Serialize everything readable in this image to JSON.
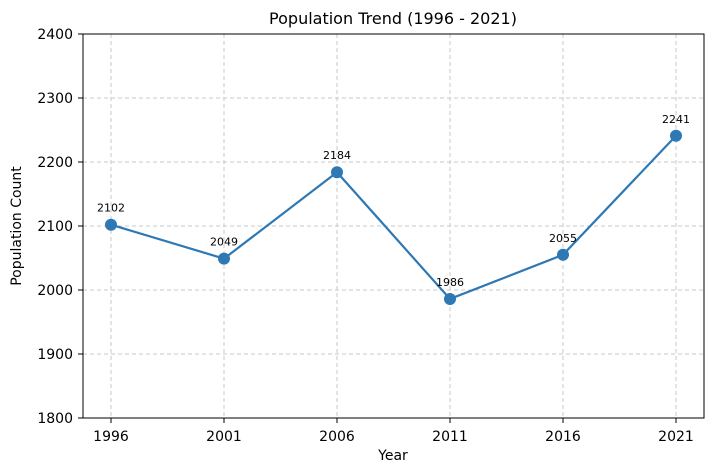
{
  "chart_data": {
    "type": "line",
    "title": "Population Trend (1996 - 2021)",
    "xlabel": "Year",
    "ylabel": "Population Count",
    "categories": [
      "1996",
      "2001",
      "2006",
      "2011",
      "2016",
      "2021"
    ],
    "series": [
      {
        "values": [
          2102,
          2049,
          2184,
          1986,
          2055,
          2241
        ],
        "color": "#2e78b4"
      }
    ],
    "data_labels": [
      "2102",
      "2049",
      "2184",
      "1986",
      "2055",
      "2241"
    ],
    "ylim": [
      1800,
      2400
    ],
    "yticks": [
      1800,
      1900,
      2000,
      2100,
      2200,
      2300,
      2400
    ],
    "grid": true,
    "legend": false
  }
}
